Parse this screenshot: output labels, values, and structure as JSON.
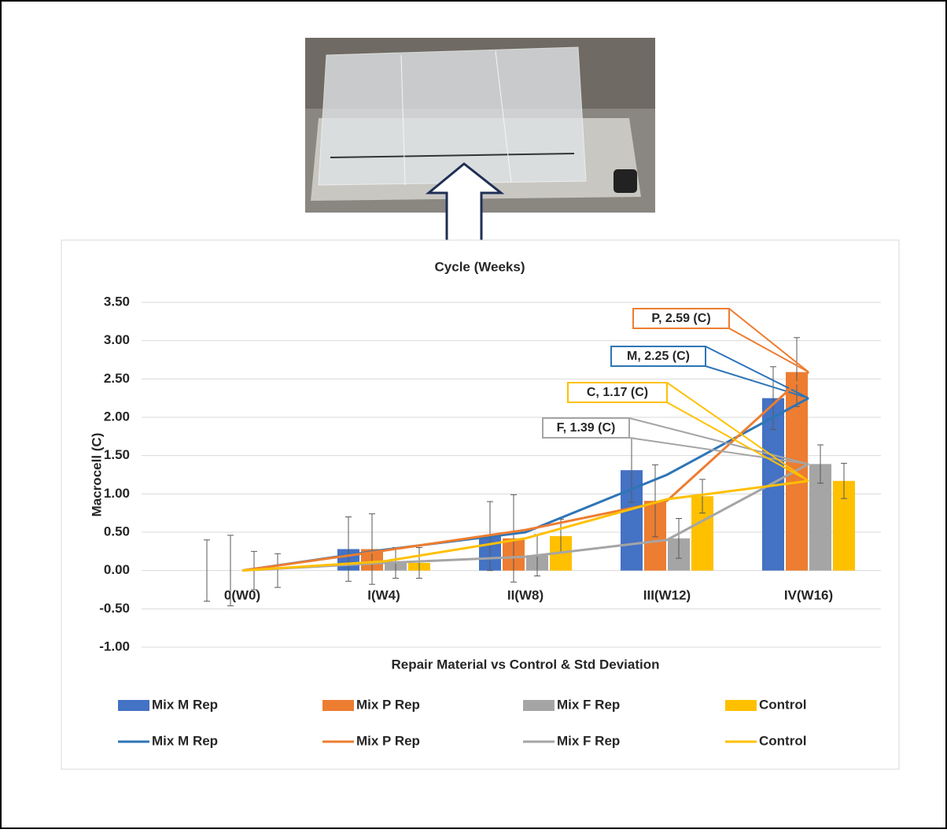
{
  "chart_data": {
    "type": "bar",
    "title": "Cycle (Weeks)",
    "x_label": "Repair Material vs Control & Std Deviation",
    "y_label": "Macrocell (C)",
    "categories": [
      "0(W0)",
      "I(W4)",
      "II(W8)",
      "III(W12)",
      "IV(W16)"
    ],
    "ylim": [
      -1,
      3.5
    ],
    "yticks": [
      {
        "value": -1,
        "label": "-1.00"
      },
      {
        "value": -0.5,
        "label": "-0.50"
      },
      {
        "value": 0,
        "label": "0.00"
      },
      {
        "value": 0.5,
        "label": "0.50"
      },
      {
        "value": 1,
        "label": "1.00"
      },
      {
        "value": 1.5,
        "label": "1.50"
      },
      {
        "value": 2,
        "label": "2.00"
      },
      {
        "value": 2.5,
        "label": "2.50"
      },
      {
        "value": 3,
        "label": "3.00"
      },
      {
        "value": 3.5,
        "label": "3.50"
      }
    ],
    "grid": true,
    "series": [
      {
        "name": "Mix M Rep",
        "type": "bar",
        "color": "#4472c4",
        "values": [
          0,
          0.28,
          0.45,
          1.31,
          2.25
        ],
        "errors": [
          0.4,
          0.42,
          0.45,
          0.42,
          0.41
        ]
      },
      {
        "name": "Mix P Rep",
        "type": "bar",
        "color": "#ed7d31",
        "values": [
          0,
          0.28,
          0.42,
          0.91,
          2.59
        ],
        "errors": [
          0.46,
          0.46,
          0.57,
          0.47,
          0.45
        ]
      },
      {
        "name": "Mix F Rep",
        "type": "bar",
        "color": "#a5a5a5",
        "values": [
          0,
          0.1,
          0.2,
          0.42,
          1.39
        ],
        "errors": [
          0.25,
          0.2,
          0.27,
          0.26,
          0.25
        ]
      },
      {
        "name": "Control",
        "type": "bar",
        "color": "#ffc000",
        "values": [
          0,
          0.1,
          0.45,
          0.97,
          1.17
        ],
        "errors": [
          0.22,
          0.2,
          0.22,
          0.22,
          0.23
        ]
      },
      {
        "name": "Mix M Rep",
        "type": "line",
        "color": "#2e75b6",
        "values": [
          0,
          0.27,
          0.5,
          1.25,
          2.25
        ],
        "value_labels": [
          null,
          null,
          null,
          null,
          "M, 2.25 (C)"
        ]
      },
      {
        "name": "Mix P Rep",
        "type": "line",
        "color": "#ed7d31",
        "values": [
          0,
          0.26,
          0.53,
          0.91,
          2.59
        ],
        "value_labels": [
          null,
          null,
          null,
          null,
          "P, 2.59 (C)"
        ]
      },
      {
        "name": "Mix F Rep",
        "type": "line",
        "color": "#a5a5a5",
        "values": [
          0,
          0.1,
          0.18,
          0.4,
          1.39
        ],
        "value_labels": [
          null,
          null,
          null,
          null,
          "F, 1.39 (C)"
        ]
      },
      {
        "name": "Control",
        "type": "line",
        "color": "#ffc000",
        "values": [
          0,
          0.12,
          0.42,
          0.93,
          1.17
        ],
        "value_labels": [
          null,
          null,
          null,
          null,
          "C, 1.17 (C)"
        ]
      }
    ]
  }
}
